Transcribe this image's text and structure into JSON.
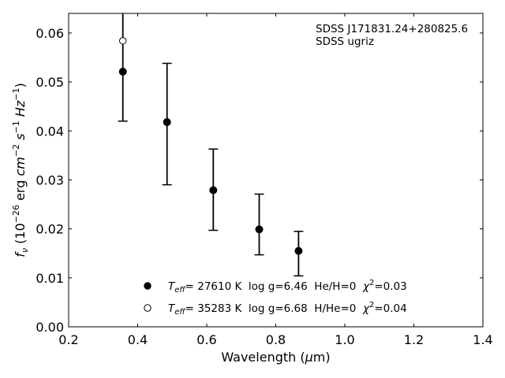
{
  "chart_data": {
    "type": "scatter",
    "xlabel": "Wavelength (μm)",
    "ylabel": "f_ν (10^-26 erg cm^-2 s^-1 Hz^-1)",
    "xlim": [
      0.2,
      1.4
    ],
    "ylim": [
      0.0,
      0.064
    ],
    "x_ticks": [
      "0.2",
      "0.4",
      "0.6",
      "0.8",
      "1.0",
      "1.2",
      "1.4"
    ],
    "y_ticks": [
      "0.00",
      "0.01",
      "0.02",
      "0.03",
      "0.04",
      "0.05",
      "0.06"
    ],
    "annotations": [
      "SDSS J171831.24+280825.6",
      "SDSS ugriz"
    ],
    "series": [
      {
        "name": "T_eff= 27610 K  log g=6.46  He/H=0  χ²=0.03",
        "marker": "filled-circle",
        "color": "#000000",
        "points": [
          {
            "x": 0.357,
            "y": 0.0521
          },
          {
            "x": 0.485,
            "y": 0.0418
          },
          {
            "x": 0.619,
            "y": 0.0279
          },
          {
            "x": 0.752,
            "y": 0.0199
          },
          {
            "x": 0.866,
            "y": 0.0155
          }
        ]
      },
      {
        "name": "T_eff= 35283 K  log g=6.68  H/He=0  χ²=0.04",
        "marker": "open-circle",
        "color": "#000000",
        "points": [
          {
            "x": 0.357,
            "y": 0.0584
          }
        ]
      }
    ],
    "observed": [
      {
        "x": 0.357,
        "y": 0.0521,
        "err_low": 0.042,
        "err_high": 0.068
      },
      {
        "x": 0.485,
        "y": 0.0418,
        "err_low": 0.029,
        "err_high": 0.0538
      },
      {
        "x": 0.619,
        "y": 0.0279,
        "err_low": 0.0197,
        "err_high": 0.0363
      },
      {
        "x": 0.752,
        "y": 0.0199,
        "err_low": 0.0147,
        "err_high": 0.0271
      },
      {
        "x": 0.866,
        "y": 0.0155,
        "err_low": 0.0104,
        "err_high": 0.0195
      }
    ],
    "legend": {
      "placement": "lower-center",
      "entries": [
        {
          "pre": "T",
          "sub": "eff",
          "mid": "= 27610 K  log g=6.46  He/H=0  ",
          "chi": "χ",
          "sup": "2",
          "post": "=0.03",
          "marker": "filled-circle"
        },
        {
          "pre": "T",
          "sub": "eff",
          "mid": "= 35283 K  log g=6.68  H/He=0  ",
          "chi": "χ",
          "sup": "2",
          "post": "=0.04",
          "marker": "open-circle"
        }
      ]
    },
    "grid": false
  }
}
